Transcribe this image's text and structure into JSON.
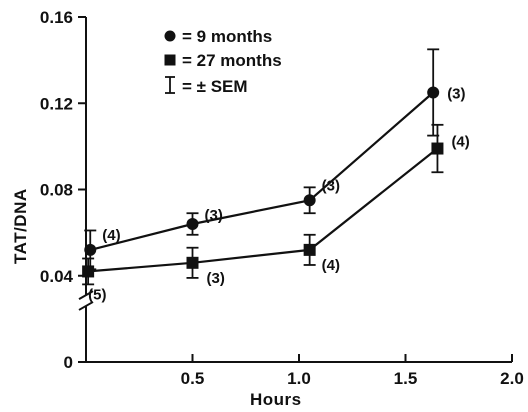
{
  "chart_data": {
    "type": "line",
    "xlabel": "Hours",
    "ylabel": "TAT/DNA",
    "xlim": [
      0,
      2.0
    ],
    "ylim": [
      0,
      0.16
    ],
    "x_ticks": [
      "0.5",
      "1.0",
      "1.5",
      "2.0"
    ],
    "x_tick_values": [
      0.5,
      1.0,
      1.5,
      2.0
    ],
    "y_ticks": [
      "0",
      "0.04",
      "0.08",
      "0.12",
      "0.16"
    ],
    "y_tick_values": [
      0,
      0.04,
      0.08,
      0.12,
      0.16
    ],
    "y_axis_break": true,
    "legend": {
      "placement": "top-left",
      "entries": [
        {
          "marker": "circle",
          "label": "= 9 months"
        },
        {
          "marker": "square",
          "label": "= 27 months"
        },
        {
          "marker": "errorbar",
          "label": "= ± SEM"
        }
      ]
    },
    "series": [
      {
        "name": "9 months",
        "marker": "circle",
        "points": [
          {
            "x": 0.02,
            "y": 0.052,
            "sem": 0.009,
            "n": "(4)"
          },
          {
            "x": 0.5,
            "y": 0.064,
            "sem": 0.005,
            "n": "(3)"
          },
          {
            "x": 1.05,
            "y": 0.075,
            "sem": 0.006,
            "n": "(3)"
          },
          {
            "x": 1.63,
            "y": 0.125,
            "sem": 0.02,
            "n": "(3)"
          }
        ]
      },
      {
        "name": "27 months",
        "marker": "square",
        "points": [
          {
            "x": 0.01,
            "y": 0.042,
            "sem": 0.006,
            "n": "(5)"
          },
          {
            "x": 0.5,
            "y": 0.046,
            "sem": 0.007,
            "n": "(3)"
          },
          {
            "x": 1.05,
            "y": 0.052,
            "sem": 0.007,
            "n": "(4)"
          },
          {
            "x": 1.65,
            "y": 0.099,
            "sem": 0.011,
            "n": "(4)"
          }
        ]
      }
    ]
  }
}
